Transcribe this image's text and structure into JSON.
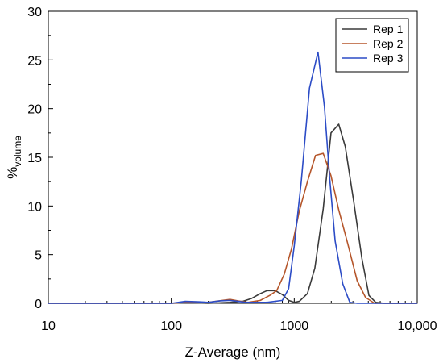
{
  "chart_data": {
    "type": "line",
    "xlabel": "Z-Average (nm)",
    "ylabel_main": "%",
    "ylabel_sub": "volume",
    "x_scale": "log",
    "xlim": [
      10,
      10000
    ],
    "ylim": [
      0,
      30
    ],
    "x_ticks": [
      10,
      100,
      1000,
      10000
    ],
    "x_tick_labels": [
      "10",
      "100",
      "1000",
      "10,000"
    ],
    "y_ticks": [
      0,
      5,
      10,
      15,
      20,
      25,
      30
    ],
    "y_tick_labels": [
      "0",
      "5",
      "10",
      "15",
      "20",
      "25",
      "30"
    ],
    "grid": false,
    "legend_position": "top-right",
    "series": [
      {
        "name": "Rep 1",
        "color": "#3a3a3a",
        "x": [
          10,
          100,
          130,
          150,
          200,
          300,
          380,
          450,
          530,
          600,
          700,
          800,
          900,
          1000,
          1100,
          1280,
          1470,
          1720,
          1990,
          2300,
          2600,
          3050,
          3550,
          4050,
          4600,
          5400,
          10000
        ],
        "y": [
          0,
          0,
          0.05,
          0.05,
          0,
          0.1,
          0.2,
          0.5,
          1.0,
          1.3,
          1.3,
          0.9,
          0.3,
          0.1,
          0.2,
          1.0,
          3.6,
          9.7,
          17.5,
          18.4,
          16.1,
          10.4,
          4.6,
          0.8,
          0.1,
          0,
          0
        ]
      },
      {
        "name": "Rep 2",
        "color": "#b5562b",
        "x": [
          10,
          100,
          130,
          160,
          200,
          260,
          300,
          350,
          420,
          530,
          630,
          720,
          830,
          950,
          1100,
          1280,
          1490,
          1720,
          1990,
          2300,
          2700,
          3250,
          3800,
          4500,
          10000
        ],
        "y": [
          0,
          0,
          0.1,
          0.1,
          0.1,
          0.3,
          0.4,
          0.25,
          0.1,
          0.3,
          0.8,
          1.3,
          3.0,
          5.6,
          9.5,
          12.5,
          15.2,
          15.4,
          13.1,
          9.6,
          6.3,
          2.3,
          0.6,
          0,
          0
        ]
      },
      {
        "name": "Rep 3",
        "color": "#2c4cc6",
        "x": [
          10,
          100,
          130,
          170,
          200,
          250,
          300,
          350,
          400,
          600,
          800,
          900,
          1000,
          1140,
          1330,
          1560,
          1760,
          1940,
          2150,
          2480,
          2830,
          3250,
          10000
        ],
        "y": [
          0,
          0,
          0.2,
          0.15,
          0.1,
          0.25,
          0.3,
          0.2,
          0.1,
          0.1,
          0.3,
          1.5,
          5.9,
          12.5,
          22.1,
          25.8,
          20.2,
          12.9,
          6.4,
          2.0,
          0.1,
          0,
          0
        ]
      }
    ]
  }
}
